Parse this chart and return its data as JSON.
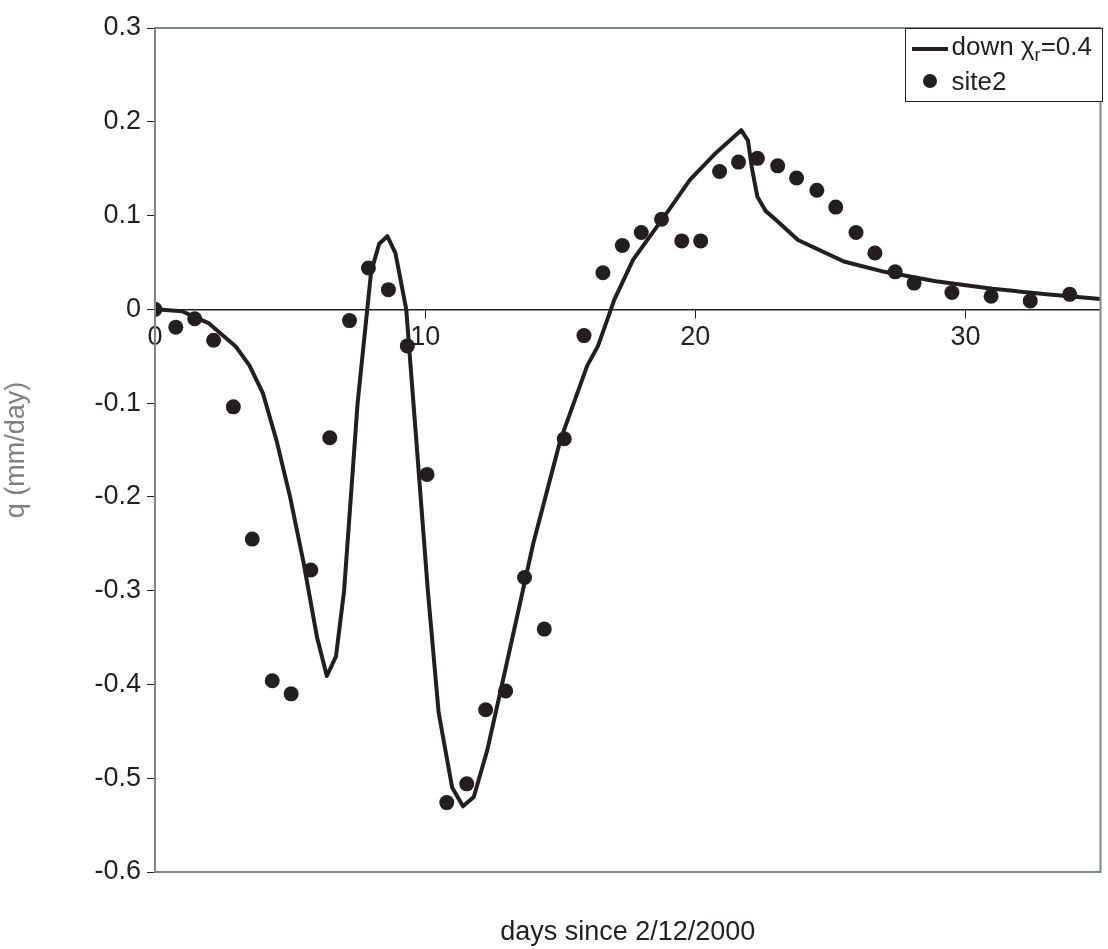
{
  "chart_data": {
    "type": "line",
    "xlabel": "days since 2/12/2000",
    "ylabel": "q (mm/day)",
    "xlim": [
      0,
      35
    ],
    "xticks": [
      0,
      10,
      20,
      30
    ],
    "ylim": [
      -0.6,
      0.3
    ],
    "yticks": [
      -0.6,
      -0.5,
      -0.4,
      -0.3,
      -0.2,
      -0.1,
      0,
      0.1,
      0.2,
      0.3
    ],
    "grid": false,
    "legend": "top right",
    "series": [
      {
        "name": "down χ$_{r}$=0.4",
        "color": "#231f20",
        "marker": "none",
        "line_style": "solid",
        "x": [
          0,
          1,
          2,
          3,
          3.5,
          4,
          4.5,
          5,
          5.5,
          6,
          6.36,
          6.7,
          7,
          7.5,
          8,
          8.3,
          8.6,
          8.9,
          9.3,
          9.7,
          10.1,
          10.5,
          11,
          11.4,
          11.8,
          12.3,
          13,
          14,
          15,
          16,
          16.4,
          17,
          17.7,
          19,
          19.8,
          20.7,
          21.7,
          21.95,
          22.1,
          22.3,
          22.6,
          23,
          23.8,
          25.5,
          27,
          28.9,
          31,
          33,
          35
        ],
        "values": [
          0,
          -0.002,
          -0.015,
          -0.04,
          -0.06,
          -0.09,
          -0.14,
          -0.2,
          -0.27,
          -0.35,
          -0.391,
          -0.37,
          -0.3,
          -0.1,
          0.04,
          0.07,
          0.078,
          0.06,
          0,
          -0.15,
          -0.3,
          -0.43,
          -0.51,
          -0.53,
          -0.52,
          -0.47,
          -0.38,
          -0.25,
          -0.14,
          -0.06,
          -0.039,
          0.01,
          0.053,
          0.105,
          0.138,
          0.165,
          0.191,
          0.18,
          0.15,
          0.12,
          0.105,
          0.095,
          0.074,
          0.051,
          0.04,
          0.03,
          0.022,
          0.016,
          0.011
        ]
      },
      {
        "name": "site2",
        "type": "scatter",
        "color": "#231f20",
        "marker": "circle",
        "x": [
          0,
          0.77,
          1.47,
          2.17,
          2.9,
          3.6,
          4.34,
          5.04,
          5.77,
          6.47,
          7.2,
          7.9,
          8.64,
          9.34,
          10.07,
          10.8,
          11.54,
          12.24,
          12.98,
          13.68,
          14.41,
          15.15,
          15.88,
          16.58,
          17.3,
          18.0,
          18.75,
          19.5,
          20.2,
          20.9,
          21.6,
          22.3,
          23.05,
          23.75,
          24.5,
          25.2,
          25.95,
          26.65,
          27.4,
          28.1,
          29.5,
          30.95,
          32.4,
          33.86
        ],
        "values": [
          0,
          -0.019,
          -0.01,
          -0.033,
          -0.104,
          -0.245,
          -0.396,
          -0.41,
          -0.278,
          -0.137,
          -0.012,
          0.044,
          0.021,
          -0.039,
          -0.176,
          -0.526,
          -0.506,
          -0.427,
          -0.407,
          -0.286,
          -0.341,
          -0.138,
          -0.028,
          0.039,
          0.068,
          0.082,
          0.096,
          0.073,
          0.073,
          0.147,
          0.157,
          0.161,
          0.153,
          0.14,
          0.127,
          0.109,
          0.082,
          0.06,
          0.04,
          0.028,
          0.018,
          0.014,
          0.009,
          0.016
        ]
      }
    ]
  }
}
